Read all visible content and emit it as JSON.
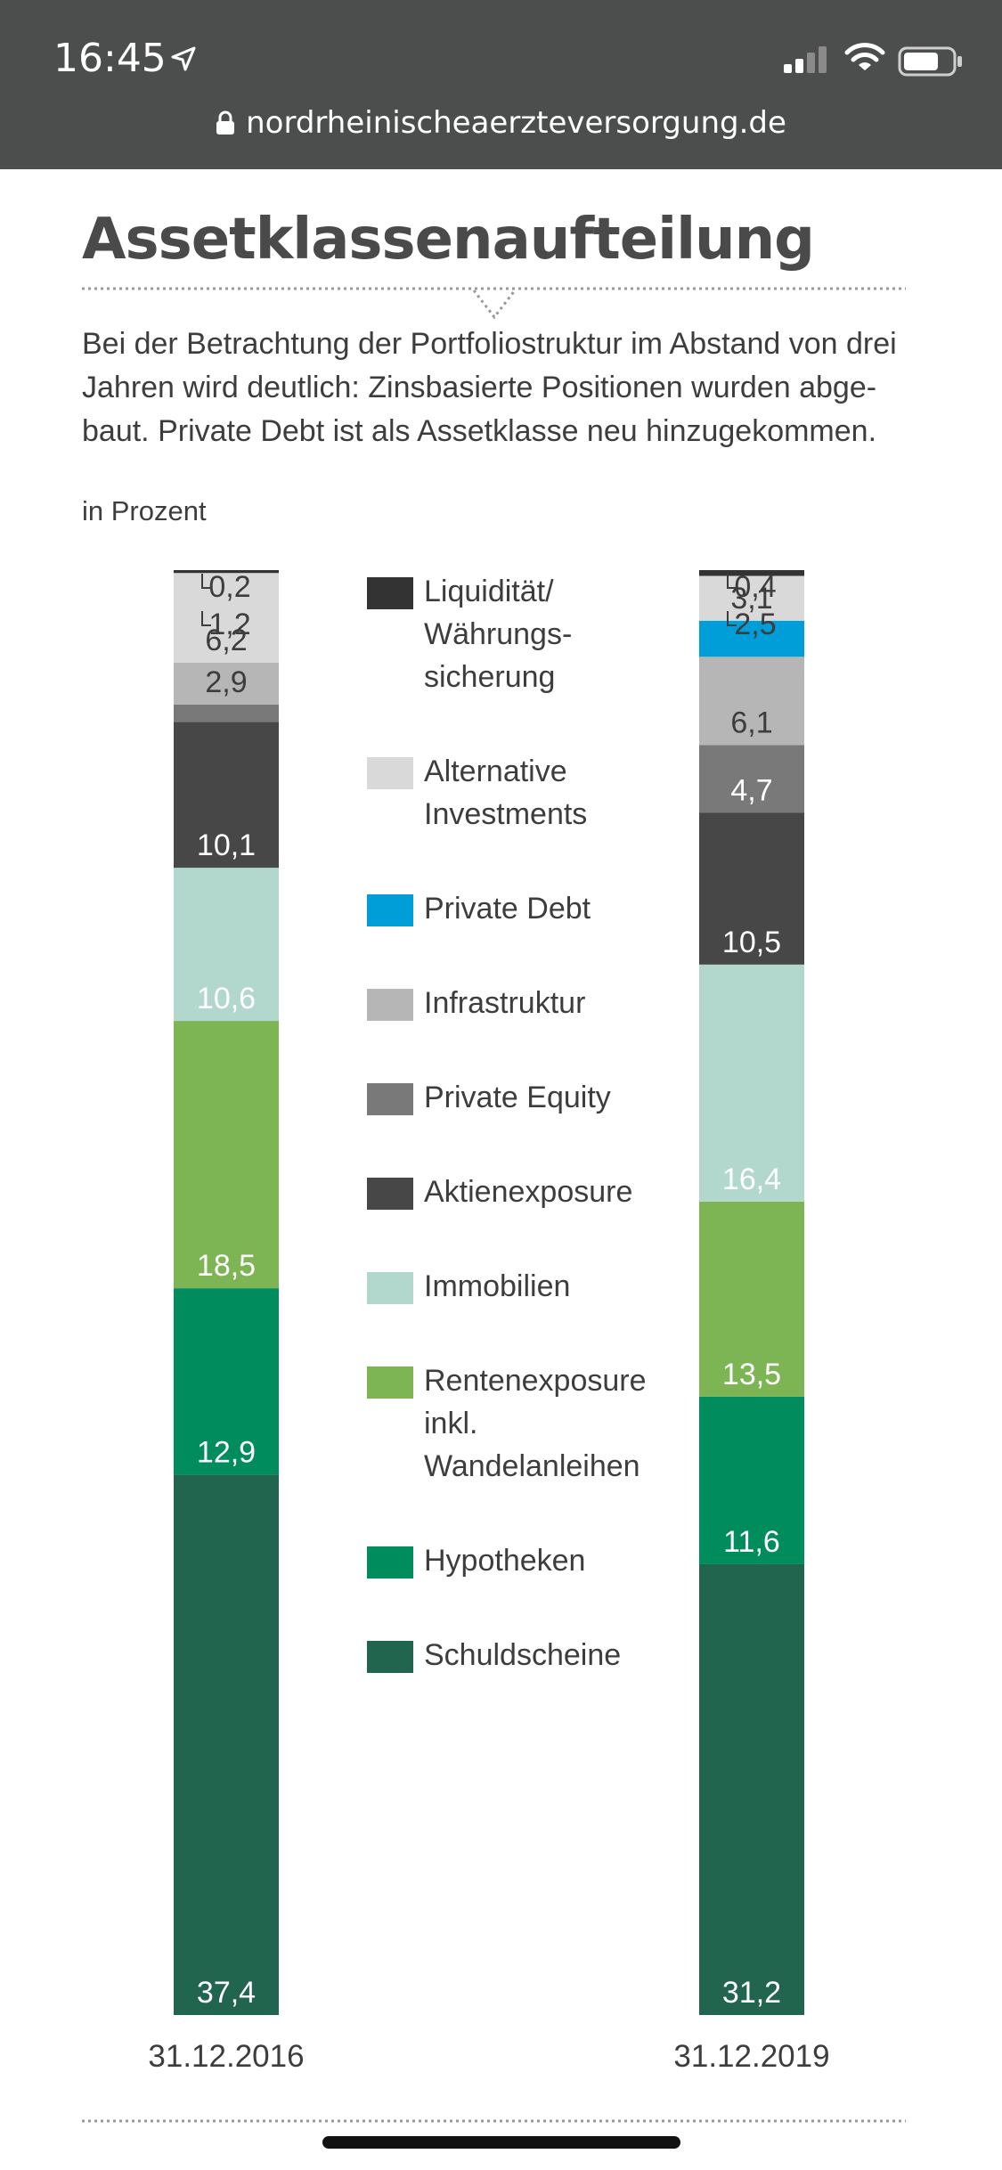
{
  "status_bar": {
    "time": "16:45",
    "url": "nordrheinischeaerzteversorgung.de"
  },
  "icons": {
    "navigation": "location-arrow-icon",
    "signal": "cellular-signal-icon",
    "wifi": "wifi-icon",
    "battery": "battery-icon",
    "lock": "lock-icon"
  },
  "article": {
    "title": "Assetklassenaufteilung",
    "intro_lines": [
      "Bei der Betrachtung der Portfoliostruktur im Abstand von drei",
      "Jahren wird deutlich: Zinsbasierte Positionen wurden abge-",
      "baut. Private Debt ist als Assetklasse neu hinzugekommen."
    ],
    "unit": "in Prozent"
  },
  "chart_data": {
    "type": "bar",
    "stacked": true,
    "orientation": "vertical",
    "categories": [
      "31.12.2016",
      "31.12.2019"
    ],
    "series": [
      {
        "name": "Schuldscheine",
        "color": "#22654f",
        "values": [
          37.4,
          31.2
        ],
        "labels": [
          "37,4",
          "31,2"
        ]
      },
      {
        "name": "Hypotheken",
        "color": "#008c5d",
        "values": [
          12.9,
          11.6
        ],
        "labels": [
          "12,9",
          "11,6"
        ]
      },
      {
        "name": "Rentenexposure inkl. Wandelanleihen",
        "legend_lines": [
          "Rentenexposure",
          "inkl.",
          "Wandelanleihen"
        ],
        "color": "#7db454",
        "values": [
          18.5,
          13.5
        ],
        "labels": [
          "18,5",
          "13,5"
        ]
      },
      {
        "name": "Immobilien",
        "color": "#b2d8cd",
        "values": [
          10.6,
          16.4
        ],
        "labels": [
          "10,6",
          "16,4"
        ]
      },
      {
        "name": "Aktienexposure",
        "color": "#474747",
        "values": [
          10.1,
          10.5
        ],
        "labels": [
          "10,1",
          "10,5"
        ]
      },
      {
        "name": "Private Equity",
        "color": "#797979",
        "values": [
          1.2,
          4.7
        ],
        "labels": [
          "1,2",
          "4,7"
        ]
      },
      {
        "name": "Infrastruktur",
        "color": "#b6b6b6",
        "values": [
          2.9,
          6.1
        ],
        "labels": [
          "2,9",
          "6,1"
        ]
      },
      {
        "name": "Private Debt",
        "color": "#009ed8",
        "values": [
          0,
          2.5
        ],
        "labels": [
          "",
          "2,5"
        ]
      },
      {
        "name": "Alternative Investments",
        "legend_lines": [
          "Alternative",
          "Investments"
        ],
        "color": "#d9d9d9",
        "values": [
          6.2,
          3.1
        ],
        "labels": [
          "6,2",
          "3,1"
        ]
      },
      {
        "name": "Liquidität/ Währungssicherung",
        "legend_lines": [
          "Liquidität/",
          "Währungs-",
          "sicherung"
        ],
        "color": "#333333",
        "values": [
          0.2,
          0.4
        ],
        "labels": [
          "0,2",
          "0,4"
        ]
      }
    ],
    "legend_order": [
      "Liquidität/ Währungssicherung",
      "Alternative Investments",
      "Private Debt",
      "Infrastruktur",
      "Private Equity",
      "Aktienexposure",
      "Immobilien",
      "Rentenexposure inkl. Wandelanleihen",
      "Hypotheken",
      "Schuldscheine"
    ],
    "legend_placement": "center",
    "ylim": [
      0,
      100
    ],
    "grid": false,
    "xlabel": "",
    "ylabel": ""
  }
}
